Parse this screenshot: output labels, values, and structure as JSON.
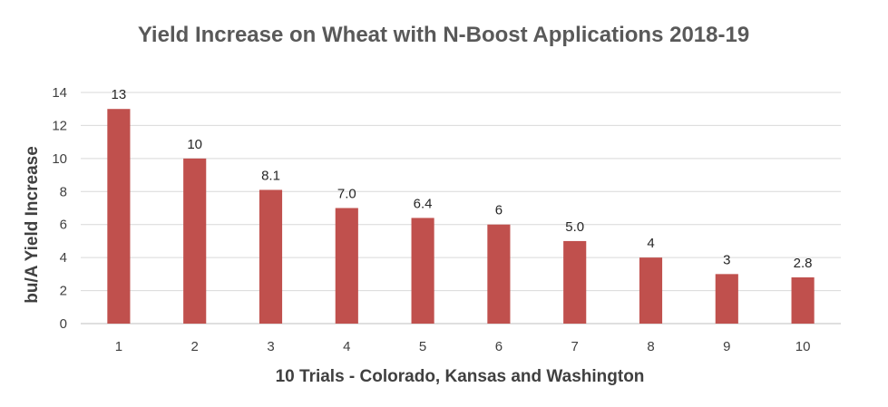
{
  "chart_data": {
    "type": "bar",
    "title": "Yield Increase on Wheat with N-Boost Applications 2018-19",
    "xlabel": "10 Trials - Colorado, Kansas and Washington",
    "ylabel": "bu/A Yield Increase",
    "categories": [
      "1",
      "2",
      "3",
      "4",
      "5",
      "6",
      "7",
      "8",
      "9",
      "10"
    ],
    "values": [
      13,
      10,
      8.1,
      7.0,
      6.4,
      6,
      5.0,
      4,
      3,
      2.8
    ],
    "data_labels": [
      "13",
      "10",
      "8.1",
      "7.0",
      "6.4",
      "6",
      "5.0",
      "4",
      "3",
      "2.8"
    ],
    "yticks": [
      "0",
      "2",
      "4",
      "6",
      "8",
      "10",
      "12",
      "14"
    ],
    "ylim": [
      0,
      14
    ],
    "grid": true,
    "legend": "none",
    "bar_color": "#c0504d"
  }
}
